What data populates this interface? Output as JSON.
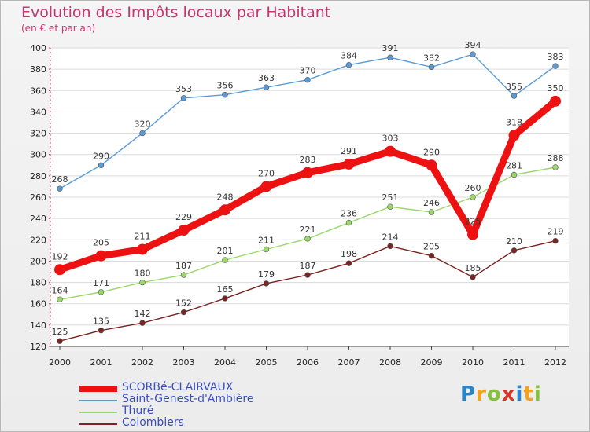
{
  "title": "Evolution des Impôts locaux par Habitant",
  "subtitle": "(en € et par an)",
  "brand": {
    "letters": [
      "P",
      "r",
      "o",
      "x",
      "i",
      "t",
      "i"
    ],
    "colors": [
      "#2b84c7",
      "#f2a21d",
      "#86c13d",
      "#d8352a",
      "#2b84c7",
      "#f2a21d",
      "#86c13d"
    ]
  },
  "chart_data": {
    "type": "line",
    "title": "Evolution des Impôts locaux par Habitant",
    "subtitle": "(en € et par an)",
    "x": [
      "2000",
      "2001",
      "2002",
      "2003",
      "2004",
      "2005",
      "2006",
      "2007",
      "2008",
      "2009",
      "2010",
      "2011",
      "2012"
    ],
    "ylim": [
      120,
      400
    ],
    "yticks": [
      120,
      140,
      160,
      180,
      200,
      220,
      240,
      260,
      280,
      300,
      320,
      340,
      360,
      380,
      400
    ],
    "grid": "horizontal",
    "legend": "bottom-left",
    "series": [
      {
        "name": "SCORBé-CLAIRVAUX",
        "color": "#ee1111",
        "emphasis": true,
        "values": [
          192,
          205,
          211,
          229,
          248,
          270,
          283,
          291,
          303,
          290,
          225,
          318,
          350
        ]
      },
      {
        "name": "Saint-Genest-d'Ambière",
        "color": "#5b9bd5",
        "emphasis": false,
        "values": [
          268,
          290,
          320,
          353,
          356,
          363,
          370,
          384,
          391,
          382,
          394,
          355,
          383
        ]
      },
      {
        "name": "Thuré",
        "color": "#9bd86b",
        "emphasis": false,
        "values": [
          164,
          171,
          180,
          187,
          201,
          211,
          221,
          236,
          251,
          246,
          260,
          281,
          288
        ]
      },
      {
        "name": "Colombiers",
        "color": "#7a2323",
        "emphasis": false,
        "values": [
          125,
          135,
          142,
          152,
          165,
          179,
          187,
          198,
          214,
          205,
          185,
          210,
          219
        ]
      }
    ]
  }
}
